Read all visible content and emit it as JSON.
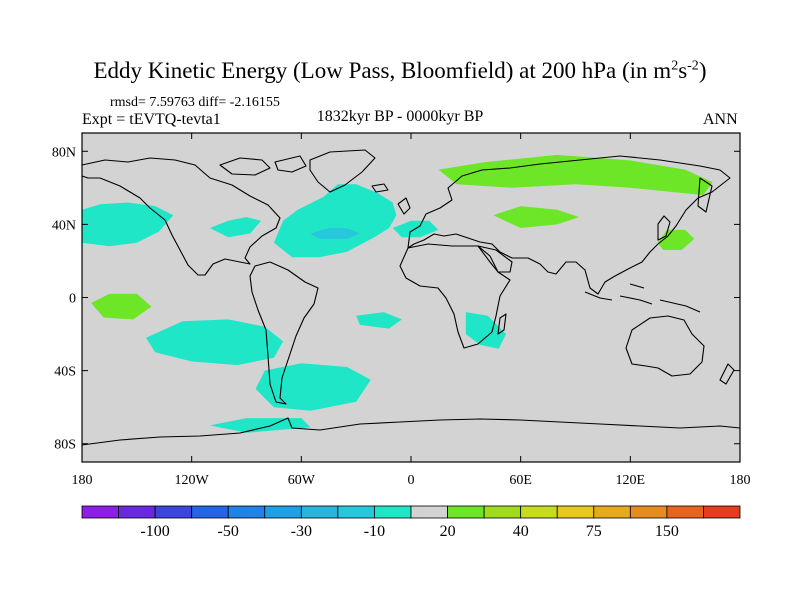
{
  "title_main": "Eddy Kinetic Energy (Low Pass, Bloomfield) at 200 hPa (in m",
  "title_unit_base": "s",
  "title_sup1": "2",
  "title_sup2": "-2",
  "title_close": ")",
  "stats": "rmsd= 7.59763 diff= -2.16155",
  "expt": "Expt = tEVTQ-tevta1",
  "period": "1832kyr BP - 0000kyr BP",
  "season": "ANN",
  "colors": {
    "land_ocean": "#d3d3d3",
    "neg_10": "#20e6c8",
    "neg_30": "#28c8dc",
    "pos_10": "#6ee628"
  },
  "chart_data": {
    "type": "heatmap",
    "title": "Eddy Kinetic Energy (Low Pass, Bloomfield) at 200 hPa (in m2s-2)",
    "projection": "cylindrical equidistant",
    "xlim": [
      -180,
      180
    ],
    "ylim": [
      -90,
      90
    ],
    "x_ticks": [
      {
        "lon": -180,
        "label": "180"
      },
      {
        "lon": -120,
        "label": "120W"
      },
      {
        "lon": -60,
        "label": "60W"
      },
      {
        "lon": 0,
        "label": "0"
      },
      {
        "lon": 60,
        "label": "60E"
      },
      {
        "lon": 120,
        "label": "120E"
      },
      {
        "lon": 180,
        "label": "180"
      }
    ],
    "y_ticks": [
      {
        "lat": 80,
        "label": "80N"
      },
      {
        "lat": 40,
        "label": "40N"
      },
      {
        "lat": 0,
        "label": "0"
      },
      {
        "lat": -40,
        "label": "40S"
      },
      {
        "lat": -80,
        "label": "80S"
      }
    ],
    "colorbar": {
      "labels": [
        {
          "after_box": 2,
          "text": "-100"
        },
        {
          "after_box": 4,
          "text": "-50"
        },
        {
          "after_box": 6,
          "text": "-30"
        },
        {
          "after_box": 8,
          "text": "-10"
        },
        {
          "after_box": 10,
          "text": "20"
        },
        {
          "after_box": 12,
          "text": "40"
        },
        {
          "after_box": 14,
          "text": "75"
        },
        {
          "after_box": 16,
          "text": "150"
        }
      ],
      "colors": [
        "#8c1ee6",
        "#6a28e0",
        "#3c46dc",
        "#2464e6",
        "#1e82e6",
        "#1ea0e6",
        "#28b4dc",
        "#28c8dc",
        "#20e6c8",
        "#d3d3d3",
        "#6ee628",
        "#a0dc1e",
        "#c8dc1e",
        "#e6c81e",
        "#e6aa1e",
        "#e68c1e",
        "#e6641e",
        "#e63c1e"
      ]
    },
    "regions": [
      {
        "name": "n-atlantic",
        "level": "-10 to -30",
        "color": "#20e6c8",
        "points": [
          [
            -75,
            30
          ],
          [
            -70,
            42
          ],
          [
            -62,
            48
          ],
          [
            -48,
            55
          ],
          [
            -40,
            62
          ],
          [
            -30,
            62
          ],
          [
            -18,
            57
          ],
          [
            -10,
            52
          ],
          [
            -8,
            45
          ],
          [
            -12,
            38
          ],
          [
            -20,
            33
          ],
          [
            -35,
            25
          ],
          [
            -50,
            22
          ],
          [
            -65,
            22
          ],
          [
            -75,
            30
          ]
        ]
      },
      {
        "name": "n-atlantic-core",
        "level": "-30 to -50",
        "color": "#28c8dc",
        "points": [
          [
            -55,
            35
          ],
          [
            -45,
            38
          ],
          [
            -35,
            38
          ],
          [
            -28,
            35
          ],
          [
            -35,
            32
          ],
          [
            -50,
            32
          ],
          [
            -55,
            35
          ]
        ]
      },
      {
        "name": "ne-pacific",
        "level": "-10 to -30",
        "color": "#20e6c8",
        "points": [
          [
            -180,
            48
          ],
          [
            -170,
            51
          ],
          [
            -155,
            52
          ],
          [
            -140,
            50
          ],
          [
            -130,
            45
          ],
          [
            -138,
            36
          ],
          [
            -150,
            30
          ],
          [
            -165,
            28
          ],
          [
            -180,
            30
          ],
          [
            -180,
            48
          ]
        ]
      },
      {
        "name": "n-america",
        "level": "-10 to -30",
        "color": "#20e6c8",
        "points": [
          [
            -110,
            38
          ],
          [
            -100,
            42
          ],
          [
            -90,
            44
          ],
          [
            -82,
            42
          ],
          [
            -88,
            35
          ],
          [
            -100,
            33
          ],
          [
            -110,
            38
          ]
        ]
      },
      {
        "name": "mediterranean",
        "level": "-10 to -30",
        "color": "#20e6c8",
        "points": [
          [
            -10,
            38
          ],
          [
            0,
            42
          ],
          [
            10,
            42
          ],
          [
            15,
            37
          ],
          [
            5,
            33
          ],
          [
            -5,
            33
          ],
          [
            -10,
            38
          ]
        ]
      },
      {
        "name": "s-pacific",
        "level": "-10 to -30",
        "color": "#20e6c8",
        "points": [
          [
            -145,
            -22
          ],
          [
            -125,
            -13
          ],
          [
            -100,
            -12
          ],
          [
            -80,
            -16
          ],
          [
            -70,
            -24
          ],
          [
            -75,
            -33
          ],
          [
            -95,
            -37
          ],
          [
            -120,
            -35
          ],
          [
            -140,
            -30
          ],
          [
            -145,
            -22
          ]
        ]
      },
      {
        "name": "s-atlantic",
        "level": "-10 to -30",
        "color": "#20e6c8",
        "points": [
          [
            -30,
            -10
          ],
          [
            -15,
            -8
          ],
          [
            -5,
            -12
          ],
          [
            -12,
            -17
          ],
          [
            -28,
            -15
          ],
          [
            -30,
            -10
          ]
        ]
      },
      {
        "name": "southern-ocean",
        "level": "-10 to -30",
        "color": "#20e6c8",
        "points": [
          [
            -80,
            -40
          ],
          [
            -60,
            -36
          ],
          [
            -35,
            -38
          ],
          [
            -22,
            -45
          ],
          [
            -30,
            -57
          ],
          [
            -55,
            -62
          ],
          [
            -75,
            -60
          ],
          [
            -85,
            -50
          ],
          [
            -80,
            -40
          ]
        ]
      },
      {
        "name": "se-africa",
        "level": "-10 to -30",
        "color": "#20e6c8",
        "points": [
          [
            30,
            -8
          ],
          [
            42,
            -10
          ],
          [
            52,
            -20
          ],
          [
            48,
            -28
          ],
          [
            38,
            -26
          ],
          [
            30,
            -20
          ],
          [
            30,
            -8
          ]
        ]
      },
      {
        "name": "antarctic-coast",
        "level": "-10 to -30",
        "color": "#20e6c8",
        "points": [
          [
            -110,
            -70
          ],
          [
            -90,
            -66
          ],
          [
            -60,
            -66
          ],
          [
            -55,
            -71
          ],
          [
            -90,
            -74
          ],
          [
            -110,
            -70
          ]
        ]
      },
      {
        "name": "siberia",
        "level": "10 to 20",
        "color": "#6ee628",
        "points": [
          [
            15,
            70
          ],
          [
            40,
            74
          ],
          [
            80,
            78
          ],
          [
            120,
            75
          ],
          [
            150,
            70
          ],
          [
            165,
            63
          ],
          [
            160,
            56
          ],
          [
            120,
            60
          ],
          [
            90,
            62
          ],
          [
            55,
            60
          ],
          [
            25,
            62
          ],
          [
            15,
            70
          ]
        ]
      },
      {
        "name": "central-asia",
        "level": "10 to 20",
        "color": "#6ee628",
        "points": [
          [
            45,
            45
          ],
          [
            60,
            50
          ],
          [
            80,
            48
          ],
          [
            92,
            44
          ],
          [
            80,
            40
          ],
          [
            60,
            38
          ],
          [
            45,
            45
          ]
        ]
      },
      {
        "name": "nw-pacific",
        "level": "10 to 20",
        "color": "#6ee628",
        "points": [
          [
            135,
            30
          ],
          [
            140,
            37
          ],
          [
            150,
            37
          ],
          [
            155,
            32
          ],
          [
            148,
            26
          ],
          [
            138,
            26
          ],
          [
            135,
            30
          ]
        ]
      },
      {
        "name": "tropical-e-pacific",
        "level": "10 to 20",
        "color": "#6ee628",
        "points": [
          [
            -175,
            -3
          ],
          [
            -165,
            2
          ],
          [
            -150,
            2
          ],
          [
            -142,
            -5
          ],
          [
            -152,
            -12
          ],
          [
            -168,
            -11
          ],
          [
            -175,
            -3
          ]
        ]
      }
    ]
  }
}
